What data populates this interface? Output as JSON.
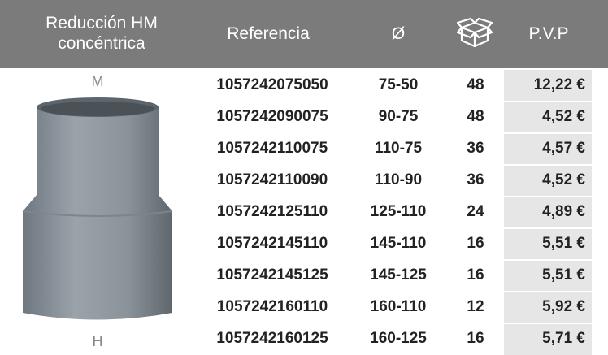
{
  "header": {
    "title": "Reducción HM concéntrica",
    "columns": [
      "Referencia",
      "Ø",
      "P.V.P"
    ]
  },
  "image": {
    "top_label": "M",
    "bottom_label": "H"
  },
  "table": {
    "rows": [
      [
        "1057242075050",
        "75-50",
        "48",
        "12,22 €"
      ],
      [
        "1057242090075",
        "90-75",
        "48",
        "4,52 €"
      ],
      [
        "1057242110075",
        "110-75",
        "36",
        "4,57 €"
      ],
      [
        "1057242110090",
        "110-90",
        "36",
        "4,52 €"
      ],
      [
        "1057242125110",
        "125-110",
        "24",
        "4,89 €"
      ],
      [
        "1057242145110",
        "145-110",
        "16",
        "5,51 €"
      ],
      [
        "1057242145125",
        "145-125",
        "16",
        "5,51 €"
      ],
      [
        "1057242160110",
        "160-110",
        "12",
        "5,92 €"
      ],
      [
        "1057242160125",
        "160-125",
        "16",
        "5,71 €"
      ]
    ]
  }
}
